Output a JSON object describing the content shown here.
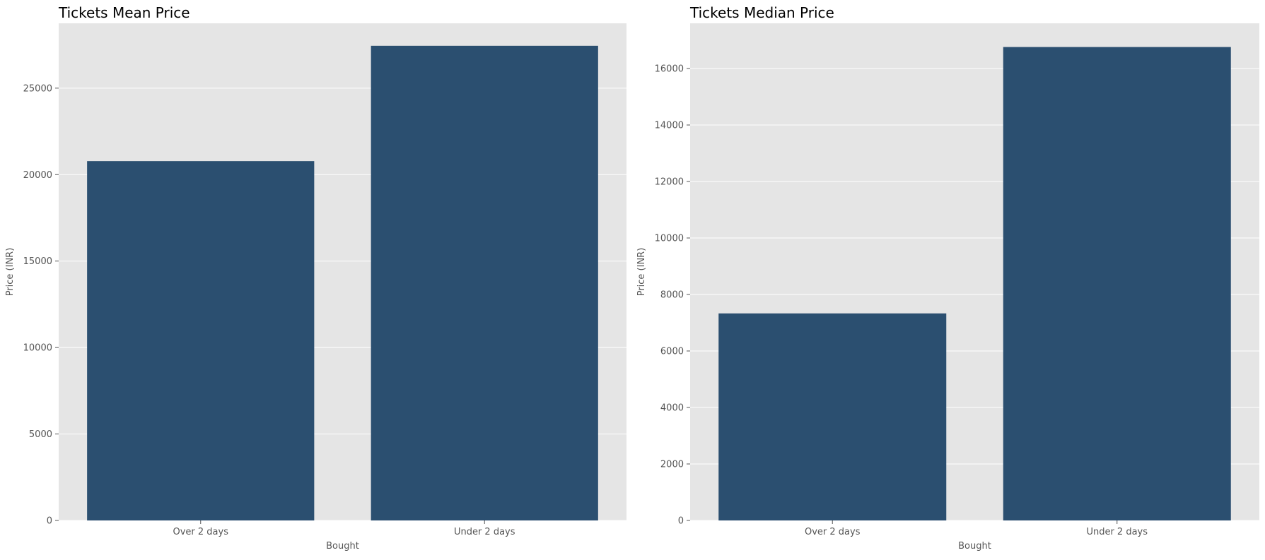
{
  "colors": {
    "bar": "#2b4f70",
    "panel_background": "#e5e5e5",
    "gridline": "#ffffff",
    "tick_text": "#555555"
  },
  "chart_data": [
    {
      "type": "bar",
      "title": "Tickets Mean Price",
      "xlabel": "Bought",
      "ylabel": "Price (INR)",
      "categories": [
        "Over 2 days",
        "Under 2 days"
      ],
      "values": [
        20780,
        27450
      ],
      "ylim": [
        0,
        28750
      ],
      "yticks": [
        0,
        5000,
        10000,
        15000,
        20000,
        25000
      ],
      "grid": true
    },
    {
      "type": "bar",
      "title": "Tickets Median Price",
      "xlabel": "Bought",
      "ylabel": "Price (INR)",
      "categories": [
        "Over 2 days",
        "Under 2 days"
      ],
      "values": [
        7330,
        16760
      ],
      "ylim": [
        0,
        17600
      ],
      "yticks": [
        0,
        2000,
        4000,
        6000,
        8000,
        10000,
        12000,
        14000,
        16000
      ],
      "grid": true
    }
  ]
}
